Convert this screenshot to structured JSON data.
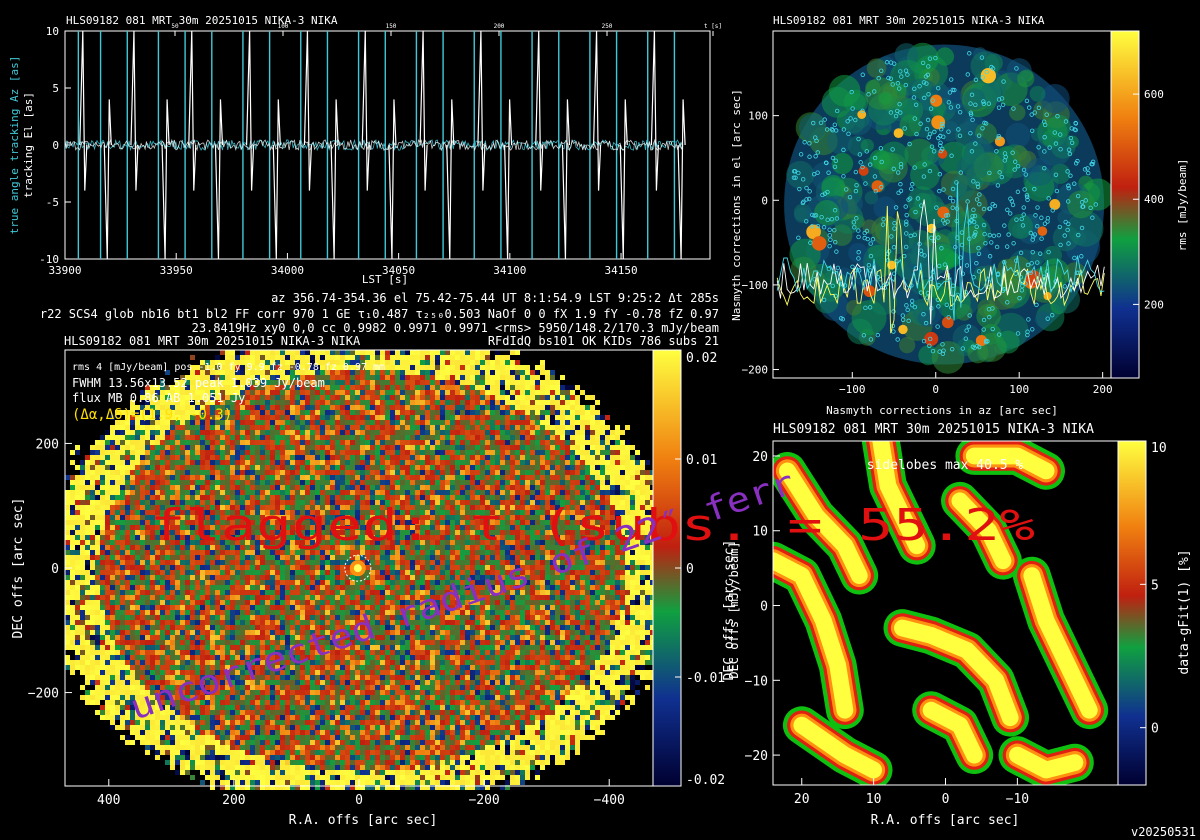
{
  "version": "v20250531",
  "panel_tracking": {
    "header": "HLS09182 081 MRT 30m  20251015 NIKA-3 NIKA",
    "ylabel_az": "true angle tracking Az [as]",
    "ylabel_el": "tracking El [as]",
    "xlabel": "LST [s]",
    "top_ticks": [
      "50",
      "100",
      "150",
      "200",
      "250",
      "t [s]"
    ],
    "info_lines": [
      "az 356.74-354.36 el 75.42-75.44 UT 8:1:54.9 LST 9:25:2 Δt 285s",
      "r22 SCS4 glob nb16 bt1 bl2 FF corr 970 1 GE τ₁0.487 τ₂₅₀0.503 NaOf 0 0 fX 1.9 fY -0.78 fZ 0.97",
      "23.8419Hz xy0 0,0 cc 0.9982 0.9971 0.9971 <rms> 5950/148.2/170.3 mJy/beam",
      "RFdIdQ bs101 OK KIDs 786 subs 21"
    ]
  },
  "panel_map": {
    "header": "HLS09182 081 MRT 30m  20251015 NIKA-3 NIKA",
    "overlay_lines": [
      "rms 4 [mJy/beam] pos -1.0 fy 9.9 fz -0.78 fz 0.97 mm",
      "FWHM 13.56x13.52 peak 1.039 Jy/beam",
      "flux MB 0.86 AB 1.051 Jy",
      "(Δα,Δδ)=(1.9, -0.3)"
    ],
    "xlabel": "R.A. offs [arc sec]",
    "ylabel": "DEC offs [arc sec]",
    "colorbar_label": "DEC offs [mJy/beam]",
    "watermark_red": "flagged: τ (subs. = 55.2%",
    "watermark_purple": "uncorrected radius of 22″ ferr"
  },
  "panel_nasmyth": {
    "header": "HLS09182 081 MRT 30m  20251015 NIKA-3 NIKA",
    "xlabel": "Nasmyth corrections in az [arc sec]",
    "ylabel": "Nasmyth corrections in el [arc sec]",
    "colorbar_label": "rms [mJy/beam]"
  },
  "panel_residual": {
    "header": "HLS09182 081 MRT 30m  20251015 NIKA-3 NIKA",
    "annotation": "sidelobes max 40.5 %",
    "xlabel": "R.A. offs [arc sec]",
    "ylabel": "DEC offs [arc sec]",
    "colorbar_label": "data-gFit(1) [%]"
  },
  "chart_data": [
    {
      "type": "line",
      "title": "HLS09182 081 MRT 30m  20251015 NIKA-3 NIKA",
      "xlabel": "LST [s]",
      "ylabel": "tracking El [as]",
      "xlim": [
        33900,
        34190
      ],
      "ylim": [
        -10,
        10
      ],
      "xticks": [
        33900,
        33950,
        34000,
        34050,
        34100,
        34150
      ],
      "yticks": [
        -10,
        -5,
        0,
        5,
        10
      ],
      "series": [
        {
          "color": "#40c8d8",
          "spike_x": [
            33906,
            33916,
            33928,
            33942,
            33954,
            33966,
            33980,
            33992,
            34006,
            34018,
            34032,
            34044,
            34058,
            34070,
            34084,
            34096,
            34110,
            34122,
            34136,
            34148,
            34162,
            34174
          ]
        },
        {
          "color": "#ffffff",
          "spike_x": [
            33908,
            33919,
            33931,
            33945,
            33957,
            33969,
            33983,
            33995,
            34009,
            34021,
            34035,
            34047,
            34061,
            34073,
            34087,
            34099,
            34113,
            34125,
            34139,
            34151,
            34165,
            34177
          ]
        }
      ],
      "grid": false
    },
    {
      "type": "heatmap",
      "title": "HLS09182 081 MRT 30m  20251015 NIKA-3 NIKA",
      "xlabel": "R.A. offs [arc sec]",
      "ylabel": "DEC offs [arc sec]",
      "xlim": [
        470,
        -470
      ],
      "ylim": [
        -350,
        350
      ],
      "xticks": [
        400,
        200,
        0,
        -200,
        -400
      ],
      "yticks": [
        200,
        0,
        -200
      ],
      "colorbar": {
        "label": "DEC offs [mJy/beam]",
        "range": [
          -0.02,
          0.02
        ],
        "ticks": [
          0.02,
          0.01,
          0,
          -0.01,
          -0.02
        ],
        "tick_labels": [
          "0.02",
          "0.01",
          "0",
          "-0.01",
          "-0.02"
        ]
      },
      "source": {
        "x": 1.9,
        "y": -0.3,
        "peak": 1.039
      }
    },
    {
      "type": "heatmap",
      "title": "HLS09182 081 MRT 30m  20251015 NIKA-3 NIKA",
      "xlabel": "Nasmyth corrections in az [arc sec]",
      "ylabel": "Nasmyth corrections in el [arc sec]",
      "xlim": [
        -195,
        210
      ],
      "ylim": [
        -210,
        200
      ],
      "xticks": [
        -100,
        0,
        100,
        200
      ],
      "yticks": [
        100,
        0,
        -100,
        -200
      ],
      "colorbar": {
        "label": "rms [mJy/beam]",
        "range": [
          60,
          720
        ],
        "ticks": [
          600,
          400,
          200
        ]
      }
    },
    {
      "type": "heatmap",
      "title": "HLS09182 081 MRT 30m  20251015 NIKA-3 NIKA",
      "xlabel": "R.A. offs [arc sec]",
      "ylabel": "DEC offs [arc sec]",
      "xlim": [
        24,
        -24
      ],
      "ylim": [
        -24,
        22
      ],
      "xticks": [
        20,
        10,
        0,
        -10
      ],
      "yticks": [
        20,
        10,
        0,
        -10,
        -20
      ],
      "colorbar": {
        "label": "data-gFit(1) [%]",
        "range": [
          -2,
          10
        ],
        "ticks": [
          10,
          5,
          0
        ]
      }
    }
  ],
  "colors": {
    "cyan": "#40c8d8",
    "white": "#ffffff",
    "red": "#e01010",
    "purple": "#8a30c0",
    "yellow": "#ffe000"
  }
}
